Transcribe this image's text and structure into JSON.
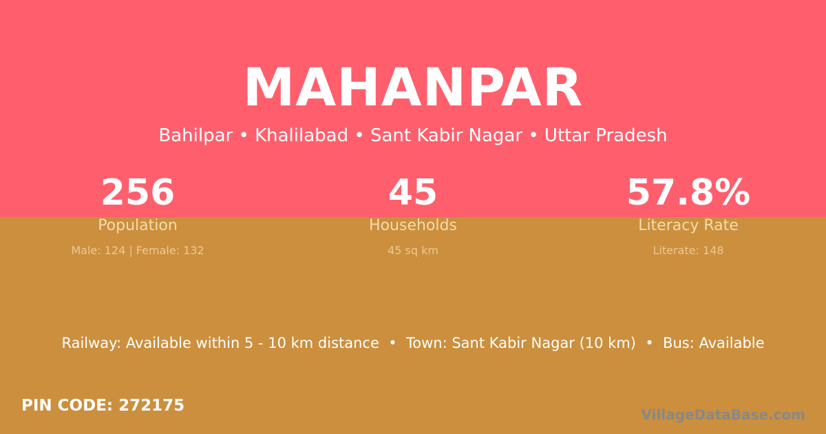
{
  "colors": {
    "top_background": "#FF5F6D",
    "bottom_background": "#CB8F3E"
  },
  "village": {
    "name": "MAHANPAR",
    "location": "Bahilpar • Khalilabad • Sant Kabir Nagar • Uttar Pradesh"
  },
  "stats": [
    {
      "value": "256",
      "label": "Population",
      "detail": "Male: 124 | Female: 132"
    },
    {
      "value": "45",
      "label": "Households",
      "detail": "45 sq km"
    },
    {
      "value": "57.8%",
      "label": "Literacy Rate",
      "detail": "Literate: 148"
    }
  ],
  "connectivity": "Railway: Available within 5 - 10 km distance  •  Town: Sant Kabir Nagar (10 km)  •  Bus: Available",
  "pin_code": "PIN CODE: 272175",
  "brand": "VillageDataBase.com"
}
